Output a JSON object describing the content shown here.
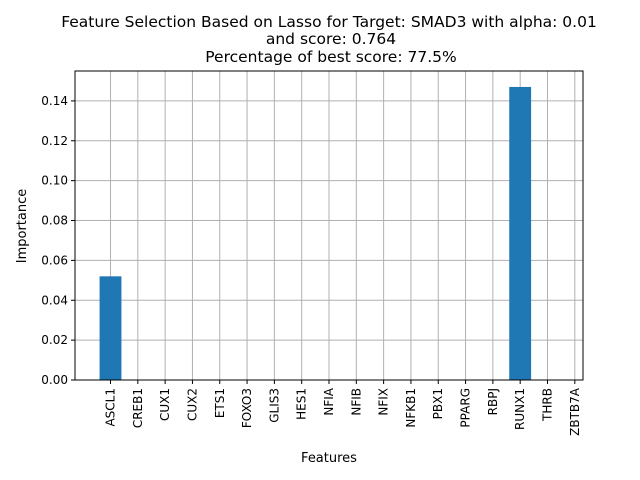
{
  "chart_data": {
    "type": "bar",
    "title_lines": [
      "Feature Selection Based on Lasso for Target: SMAD3 with alpha: 0.01",
      "and score: 0.764",
      "Percentage of best score: 77.5%"
    ],
    "xlabel": "Features",
    "ylabel": "Importance",
    "categories": [
      "ASCL1",
      "CREB1",
      "CUX1",
      "CUX2",
      "ETS1",
      "FOXO3",
      "GLIS3",
      "HES1",
      "NFIA",
      "NFIB",
      "NFIX",
      "NFKB1",
      "PBX1",
      "PPARG",
      "RBPJ",
      "RUNX1",
      "THRB",
      "ZBTB7A"
    ],
    "values": [
      0.052,
      0,
      0,
      0,
      0,
      0,
      0,
      0,
      0,
      0,
      0,
      0,
      0,
      0,
      0,
      0.147,
      0,
      0
    ],
    "ylim": [
      0,
      0.155
    ],
    "yticks": [
      0.0,
      0.02,
      0.04,
      0.06,
      0.08,
      0.1,
      0.12,
      0.14
    ],
    "ytick_labels": [
      "0.00",
      "0.02",
      "0.04",
      "0.06",
      "0.08",
      "0.10",
      "0.12",
      "0.14"
    ],
    "grid": true,
    "bar_color": "#1f77b4",
    "grid_color": "#b0b0b0"
  }
}
